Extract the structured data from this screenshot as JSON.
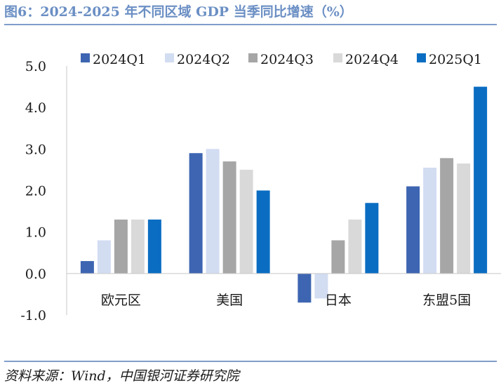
{
  "title": "图6：2024-2025 年不同区域 GDP 当季同比增速（%）",
  "source": "资料来源：Wind，中国银河证券研究院",
  "chart_data": {
    "type": "bar",
    "categories": [
      "欧元区",
      "美国",
      "日本",
      "东盟5国"
    ],
    "series": [
      {
        "name": "2024Q1",
        "color": "#3d65b1",
        "values": [
          0.3,
          2.9,
          -0.7,
          2.1
        ]
      },
      {
        "name": "2024Q2",
        "color": "#d2ddf2",
        "values": [
          0.8,
          3.0,
          -0.6,
          2.55
        ]
      },
      {
        "name": "2024Q3",
        "color": "#a6a6a6",
        "values": [
          1.3,
          2.7,
          0.8,
          2.78
        ]
      },
      {
        "name": "2024Q4",
        "color": "#d9d9d9",
        "values": [
          1.3,
          2.5,
          1.3,
          2.65
        ]
      },
      {
        "name": "2025Q1",
        "color": "#0a6dc2",
        "values": [
          1.3,
          2.0,
          1.7,
          4.5
        ]
      }
    ],
    "y_ticks": [
      "5.0",
      "4.0",
      "3.0",
      "2.0",
      "1.0",
      "0.0",
      "-1.0"
    ],
    "ylim": [
      -1.0,
      5.0
    ],
    "legend_position": "top",
    "grid": false
  }
}
